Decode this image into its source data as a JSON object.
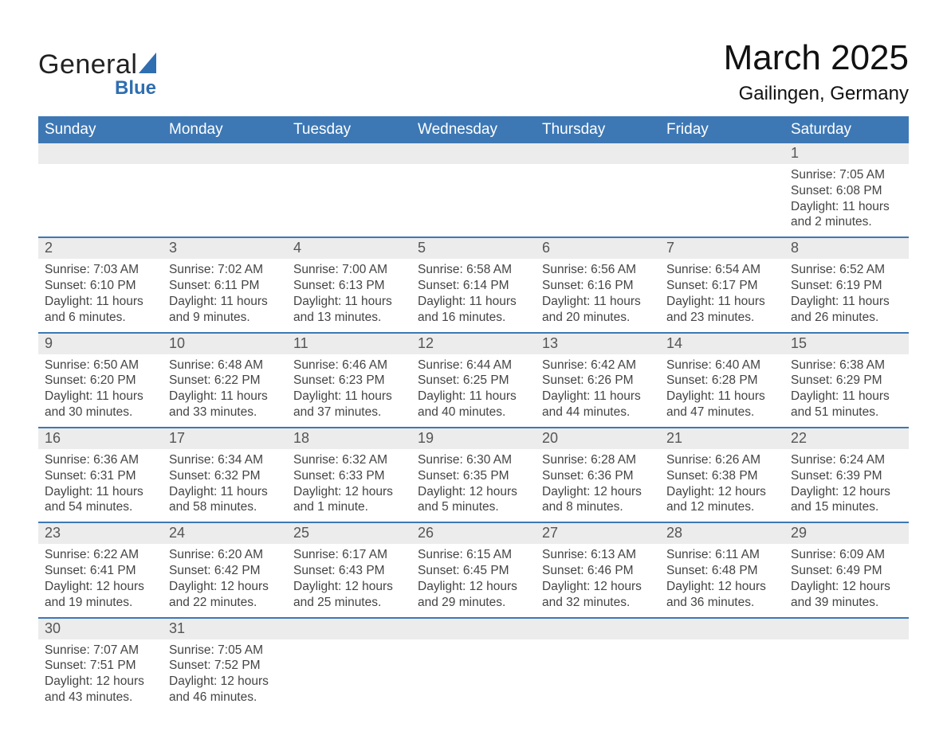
{
  "logo": {
    "text_main": "General",
    "text_sub": "Blue",
    "main_color": "#222222",
    "sub_color": "#2f6eb0",
    "triangle_color": "#2f6eb0"
  },
  "header": {
    "month_title": "March 2025",
    "location": "Gailingen, Germany"
  },
  "colors": {
    "header_bg": "#3d78b5",
    "header_text": "#ffffff",
    "row_divider": "#3d78b5",
    "daynum_bg": "#ececec",
    "daynum_text": "#555555",
    "body_text": "#444444",
    "page_bg": "#ffffff"
  },
  "day_headers": [
    "Sunday",
    "Monday",
    "Tuesday",
    "Wednesday",
    "Thursday",
    "Friday",
    "Saturday"
  ],
  "weeks": [
    [
      null,
      null,
      null,
      null,
      null,
      null,
      {
        "n": "1",
        "sunrise": "Sunrise: 7:05 AM",
        "sunset": "Sunset: 6:08 PM",
        "dl1": "Daylight: 11 hours",
        "dl2": "and 2 minutes."
      }
    ],
    [
      {
        "n": "2",
        "sunrise": "Sunrise: 7:03 AM",
        "sunset": "Sunset: 6:10 PM",
        "dl1": "Daylight: 11 hours",
        "dl2": "and 6 minutes."
      },
      {
        "n": "3",
        "sunrise": "Sunrise: 7:02 AM",
        "sunset": "Sunset: 6:11 PM",
        "dl1": "Daylight: 11 hours",
        "dl2": "and 9 minutes."
      },
      {
        "n": "4",
        "sunrise": "Sunrise: 7:00 AM",
        "sunset": "Sunset: 6:13 PM",
        "dl1": "Daylight: 11 hours",
        "dl2": "and 13 minutes."
      },
      {
        "n": "5",
        "sunrise": "Sunrise: 6:58 AM",
        "sunset": "Sunset: 6:14 PM",
        "dl1": "Daylight: 11 hours",
        "dl2": "and 16 minutes."
      },
      {
        "n": "6",
        "sunrise": "Sunrise: 6:56 AM",
        "sunset": "Sunset: 6:16 PM",
        "dl1": "Daylight: 11 hours",
        "dl2": "and 20 minutes."
      },
      {
        "n": "7",
        "sunrise": "Sunrise: 6:54 AM",
        "sunset": "Sunset: 6:17 PM",
        "dl1": "Daylight: 11 hours",
        "dl2": "and 23 minutes."
      },
      {
        "n": "8",
        "sunrise": "Sunrise: 6:52 AM",
        "sunset": "Sunset: 6:19 PM",
        "dl1": "Daylight: 11 hours",
        "dl2": "and 26 minutes."
      }
    ],
    [
      {
        "n": "9",
        "sunrise": "Sunrise: 6:50 AM",
        "sunset": "Sunset: 6:20 PM",
        "dl1": "Daylight: 11 hours",
        "dl2": "and 30 minutes."
      },
      {
        "n": "10",
        "sunrise": "Sunrise: 6:48 AM",
        "sunset": "Sunset: 6:22 PM",
        "dl1": "Daylight: 11 hours",
        "dl2": "and 33 minutes."
      },
      {
        "n": "11",
        "sunrise": "Sunrise: 6:46 AM",
        "sunset": "Sunset: 6:23 PM",
        "dl1": "Daylight: 11 hours",
        "dl2": "and 37 minutes."
      },
      {
        "n": "12",
        "sunrise": "Sunrise: 6:44 AM",
        "sunset": "Sunset: 6:25 PM",
        "dl1": "Daylight: 11 hours",
        "dl2": "and 40 minutes."
      },
      {
        "n": "13",
        "sunrise": "Sunrise: 6:42 AM",
        "sunset": "Sunset: 6:26 PM",
        "dl1": "Daylight: 11 hours",
        "dl2": "and 44 minutes."
      },
      {
        "n": "14",
        "sunrise": "Sunrise: 6:40 AM",
        "sunset": "Sunset: 6:28 PM",
        "dl1": "Daylight: 11 hours",
        "dl2": "and 47 minutes."
      },
      {
        "n": "15",
        "sunrise": "Sunrise: 6:38 AM",
        "sunset": "Sunset: 6:29 PM",
        "dl1": "Daylight: 11 hours",
        "dl2": "and 51 minutes."
      }
    ],
    [
      {
        "n": "16",
        "sunrise": "Sunrise: 6:36 AM",
        "sunset": "Sunset: 6:31 PM",
        "dl1": "Daylight: 11 hours",
        "dl2": "and 54 minutes."
      },
      {
        "n": "17",
        "sunrise": "Sunrise: 6:34 AM",
        "sunset": "Sunset: 6:32 PM",
        "dl1": "Daylight: 11 hours",
        "dl2": "and 58 minutes."
      },
      {
        "n": "18",
        "sunrise": "Sunrise: 6:32 AM",
        "sunset": "Sunset: 6:33 PM",
        "dl1": "Daylight: 12 hours",
        "dl2": "and 1 minute."
      },
      {
        "n": "19",
        "sunrise": "Sunrise: 6:30 AM",
        "sunset": "Sunset: 6:35 PM",
        "dl1": "Daylight: 12 hours",
        "dl2": "and 5 minutes."
      },
      {
        "n": "20",
        "sunrise": "Sunrise: 6:28 AM",
        "sunset": "Sunset: 6:36 PM",
        "dl1": "Daylight: 12 hours",
        "dl2": "and 8 minutes."
      },
      {
        "n": "21",
        "sunrise": "Sunrise: 6:26 AM",
        "sunset": "Sunset: 6:38 PM",
        "dl1": "Daylight: 12 hours",
        "dl2": "and 12 minutes."
      },
      {
        "n": "22",
        "sunrise": "Sunrise: 6:24 AM",
        "sunset": "Sunset: 6:39 PM",
        "dl1": "Daylight: 12 hours",
        "dl2": "and 15 minutes."
      }
    ],
    [
      {
        "n": "23",
        "sunrise": "Sunrise: 6:22 AM",
        "sunset": "Sunset: 6:41 PM",
        "dl1": "Daylight: 12 hours",
        "dl2": "and 19 minutes."
      },
      {
        "n": "24",
        "sunrise": "Sunrise: 6:20 AM",
        "sunset": "Sunset: 6:42 PM",
        "dl1": "Daylight: 12 hours",
        "dl2": "and 22 minutes."
      },
      {
        "n": "25",
        "sunrise": "Sunrise: 6:17 AM",
        "sunset": "Sunset: 6:43 PM",
        "dl1": "Daylight: 12 hours",
        "dl2": "and 25 minutes."
      },
      {
        "n": "26",
        "sunrise": "Sunrise: 6:15 AM",
        "sunset": "Sunset: 6:45 PM",
        "dl1": "Daylight: 12 hours",
        "dl2": "and 29 minutes."
      },
      {
        "n": "27",
        "sunrise": "Sunrise: 6:13 AM",
        "sunset": "Sunset: 6:46 PM",
        "dl1": "Daylight: 12 hours",
        "dl2": "and 32 minutes."
      },
      {
        "n": "28",
        "sunrise": "Sunrise: 6:11 AM",
        "sunset": "Sunset: 6:48 PM",
        "dl1": "Daylight: 12 hours",
        "dl2": "and 36 minutes."
      },
      {
        "n": "29",
        "sunrise": "Sunrise: 6:09 AM",
        "sunset": "Sunset: 6:49 PM",
        "dl1": "Daylight: 12 hours",
        "dl2": "and 39 minutes."
      }
    ],
    [
      {
        "n": "30",
        "sunrise": "Sunrise: 7:07 AM",
        "sunset": "Sunset: 7:51 PM",
        "dl1": "Daylight: 12 hours",
        "dl2": "and 43 minutes."
      },
      {
        "n": "31",
        "sunrise": "Sunrise: 7:05 AM",
        "sunset": "Sunset: 7:52 PM",
        "dl1": "Daylight: 12 hours",
        "dl2": "and 46 minutes."
      },
      null,
      null,
      null,
      null,
      null
    ]
  ]
}
